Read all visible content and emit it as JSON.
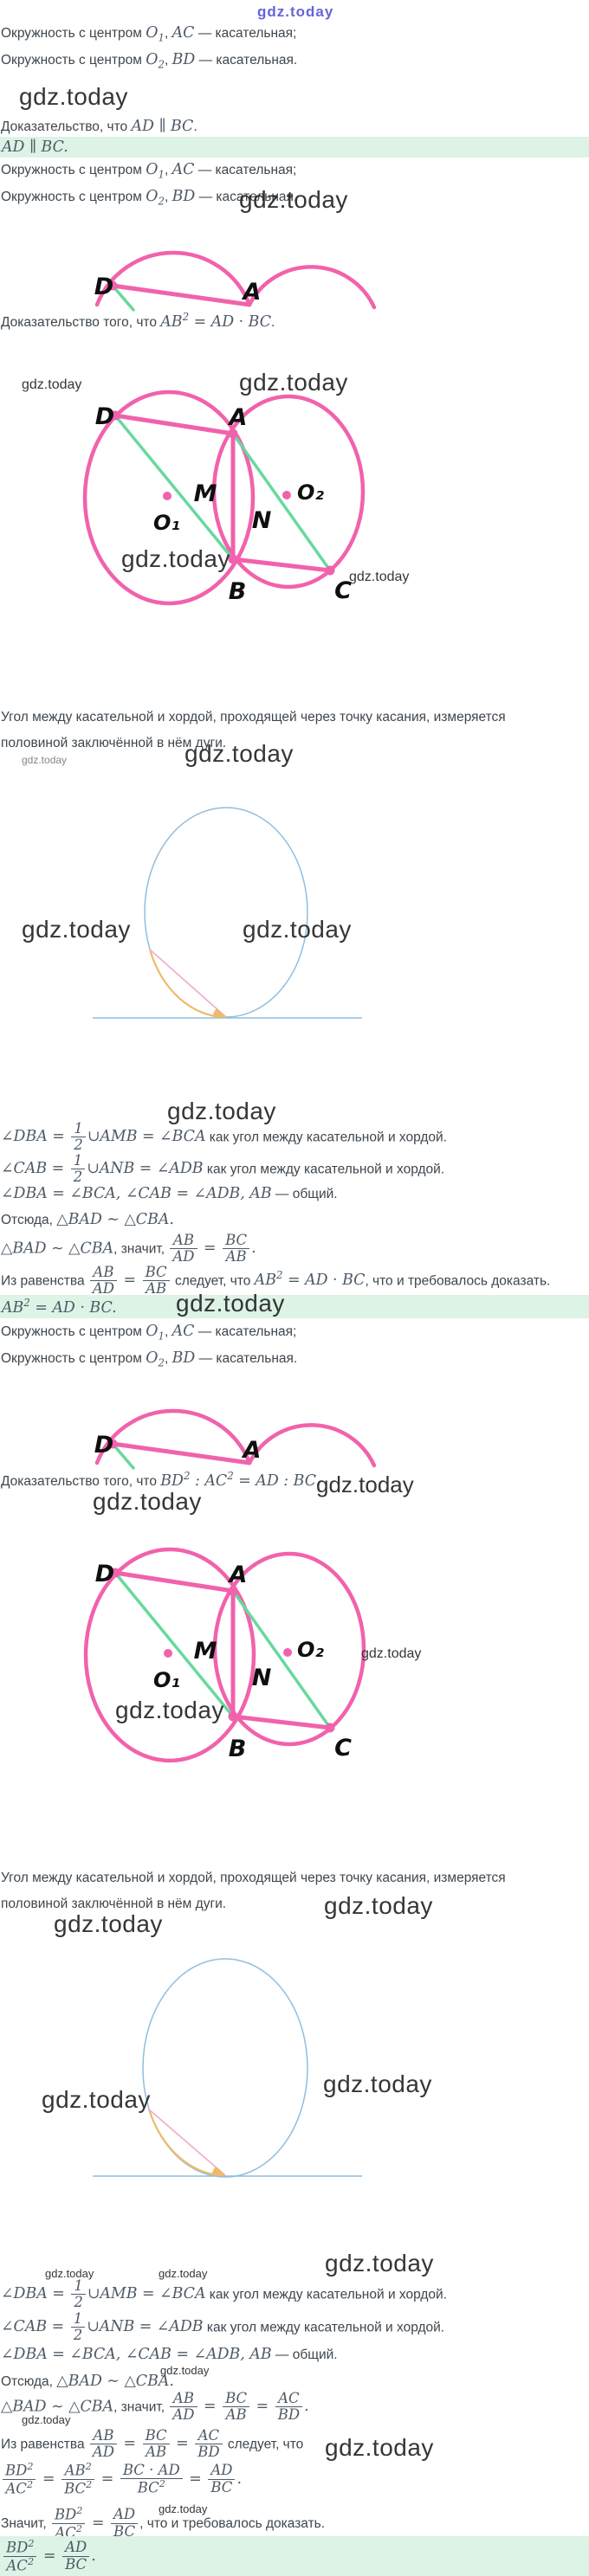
{
  "watermark": "gdz.today",
  "colors": {
    "pink": "#f162ac",
    "green": "#67d99e",
    "circle_blue": "#8fbedf",
    "arc_orange": "#eeba6a",
    "chord_pink": "#efb0d2",
    "highlight_bg": "#dcf3e6",
    "text": "#3e464d",
    "math_text": "#4e5a66",
    "watermark_blue": "#4a4ad2"
  },
  "labels": {
    "d": "D",
    "a": "A",
    "b": "B",
    "c": "C",
    "m": "M",
    "n": "N",
    "o1": "O₁",
    "o2": "O₂"
  },
  "intro": {
    "given_circle1": "Окружность с центром $O{_1}$, $AC$ — касательная;",
    "given_circle2": "Окружность с центром $O{_2}$, $BD$ — касательная.",
    "prove_parallel": "Доказательство, что $AD ∥ BC$.",
    "result_parallel": "$AD ∥ BC.$"
  },
  "theorem": {
    "line1": "Угол между касательной и хордой, проходящей через точку касания, измеряется",
    "line2": "половиной заключённой в нём дуги."
  },
  "task1": {
    "prove": "Доказательство того, что $AB{^2} = AD · BC$.",
    "steps": [
      "$∠DBA = [f:1/2]∪AMB = ∠BCA$ как угол между касательной и хордой.",
      "$∠CAB = [f:1/2]∪ANB = ∠ADB$ как угол между касательной и хордой.",
      "$∠DBA = ∠BCA, ∠CAB = ∠ADB, AB$ — общий.",
      "Отсюда, $△BAD ∼ △CBA.$",
      "$△BAD ∼ △CBA$, значит, $[f:AB/AD] = [f:BC/AB].$",
      "Из равенства $[f:AB/AD] = [f:BC/AB]$ следует, что $AB{^2} = AD · BC$, что и требовалось доказать."
    ],
    "result": "$AB{^2} = AD · BC.$"
  },
  "task2": {
    "prove": "Доказательство того, что $BD{^2} : AC{^2} = AD : BC.$",
    "steps": [
      "$∠DBA = [f:1/2]∪AMB = ∠BCA$ как угол между касательной и хордой.",
      "$∠CAB = [f:1/2]∪ANB = ∠ADB$ как угол между касательной и хордой.",
      "$∠DBA = ∠BCA, ∠CAB = ∠ADB, AB$ — общий.",
      "Отсюда, $△BAD ∼ △CBA.$",
      "$△BAD ∼ △CBA$, значит, $[f:AB/AD] = [f:BC/AB] = [f:AC/BD].$",
      "Из равенства $[f:AB/AD] = [f:BC/AB] = [f:AC/BD]$ следует, что",
      "$[f:BD{^2}/AC{^2}] = [f:AB{^2}/BC{^2}] = [f:BC · AD/BC{^2}] = [f:AD/BC].$",
      "Значит, $[f:BD{^2}/AC{^2}] = [f:AD/BC]$, что и требовалось доказать."
    ],
    "result": "$[f:BD{^2}/AC{^2}] = [f:AD/BC].$"
  }
}
